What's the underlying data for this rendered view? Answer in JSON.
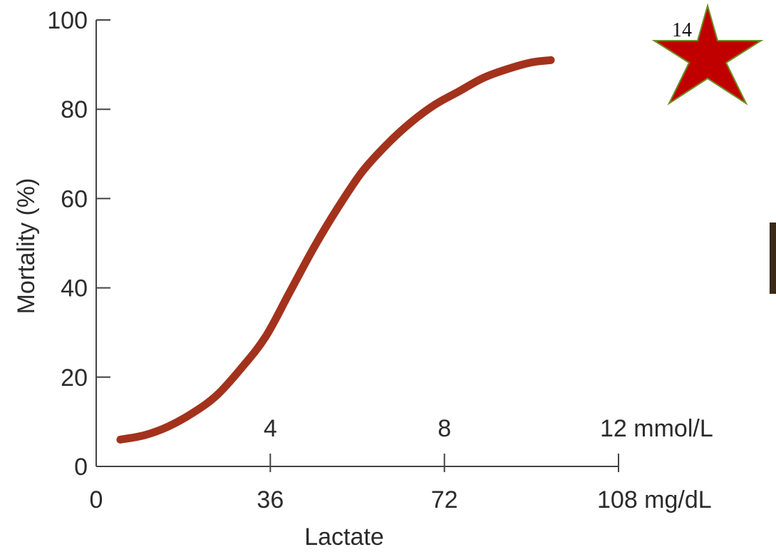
{
  "slide": {
    "number": "14"
  },
  "colors": {
    "curve": "#a3321c",
    "axis": "#444444",
    "star_fill": "#c00000",
    "star_stroke": "#6b8e23",
    "side_bar": "#3a2a1a"
  },
  "chart_data": {
    "type": "line",
    "title": "",
    "ylabel": "Mortality (%)",
    "xlabel": "Lactate",
    "ylim": [
      0,
      100
    ],
    "xlim": [
      0,
      108
    ],
    "y_ticks": [
      {
        "value": 0,
        "label": "0"
      },
      {
        "value": 20,
        "label": "20"
      },
      {
        "value": 40,
        "label": "40"
      },
      {
        "value": 60,
        "label": "60"
      },
      {
        "value": 80,
        "label": "80"
      },
      {
        "value": 100,
        "label": "100"
      }
    ],
    "x_ticks_mgdl": [
      {
        "value": 0,
        "label": "0"
      },
      {
        "value": 36,
        "label": "36"
      },
      {
        "value": 72,
        "label": "72"
      },
      {
        "value": 108,
        "label": "108 mg/dL"
      }
    ],
    "x_ticks_mmol": [
      {
        "value": 36,
        "label": "4"
      },
      {
        "value": 72,
        "label": "8"
      },
      {
        "value": 108,
        "label": "12 mmol/L"
      }
    ],
    "grid": false,
    "series": [
      {
        "x": [
          5,
          10,
          15,
          20,
          25,
          30,
          35,
          40,
          45,
          50,
          55,
          60,
          65,
          70,
          75,
          80,
          85,
          90,
          94
        ],
        "values": [
          6,
          7,
          9,
          12,
          16,
          22,
          29,
          39,
          49,
          58,
          66,
          72,
          77,
          81,
          84,
          87,
          89,
          90.5,
          91
        ]
      }
    ]
  }
}
